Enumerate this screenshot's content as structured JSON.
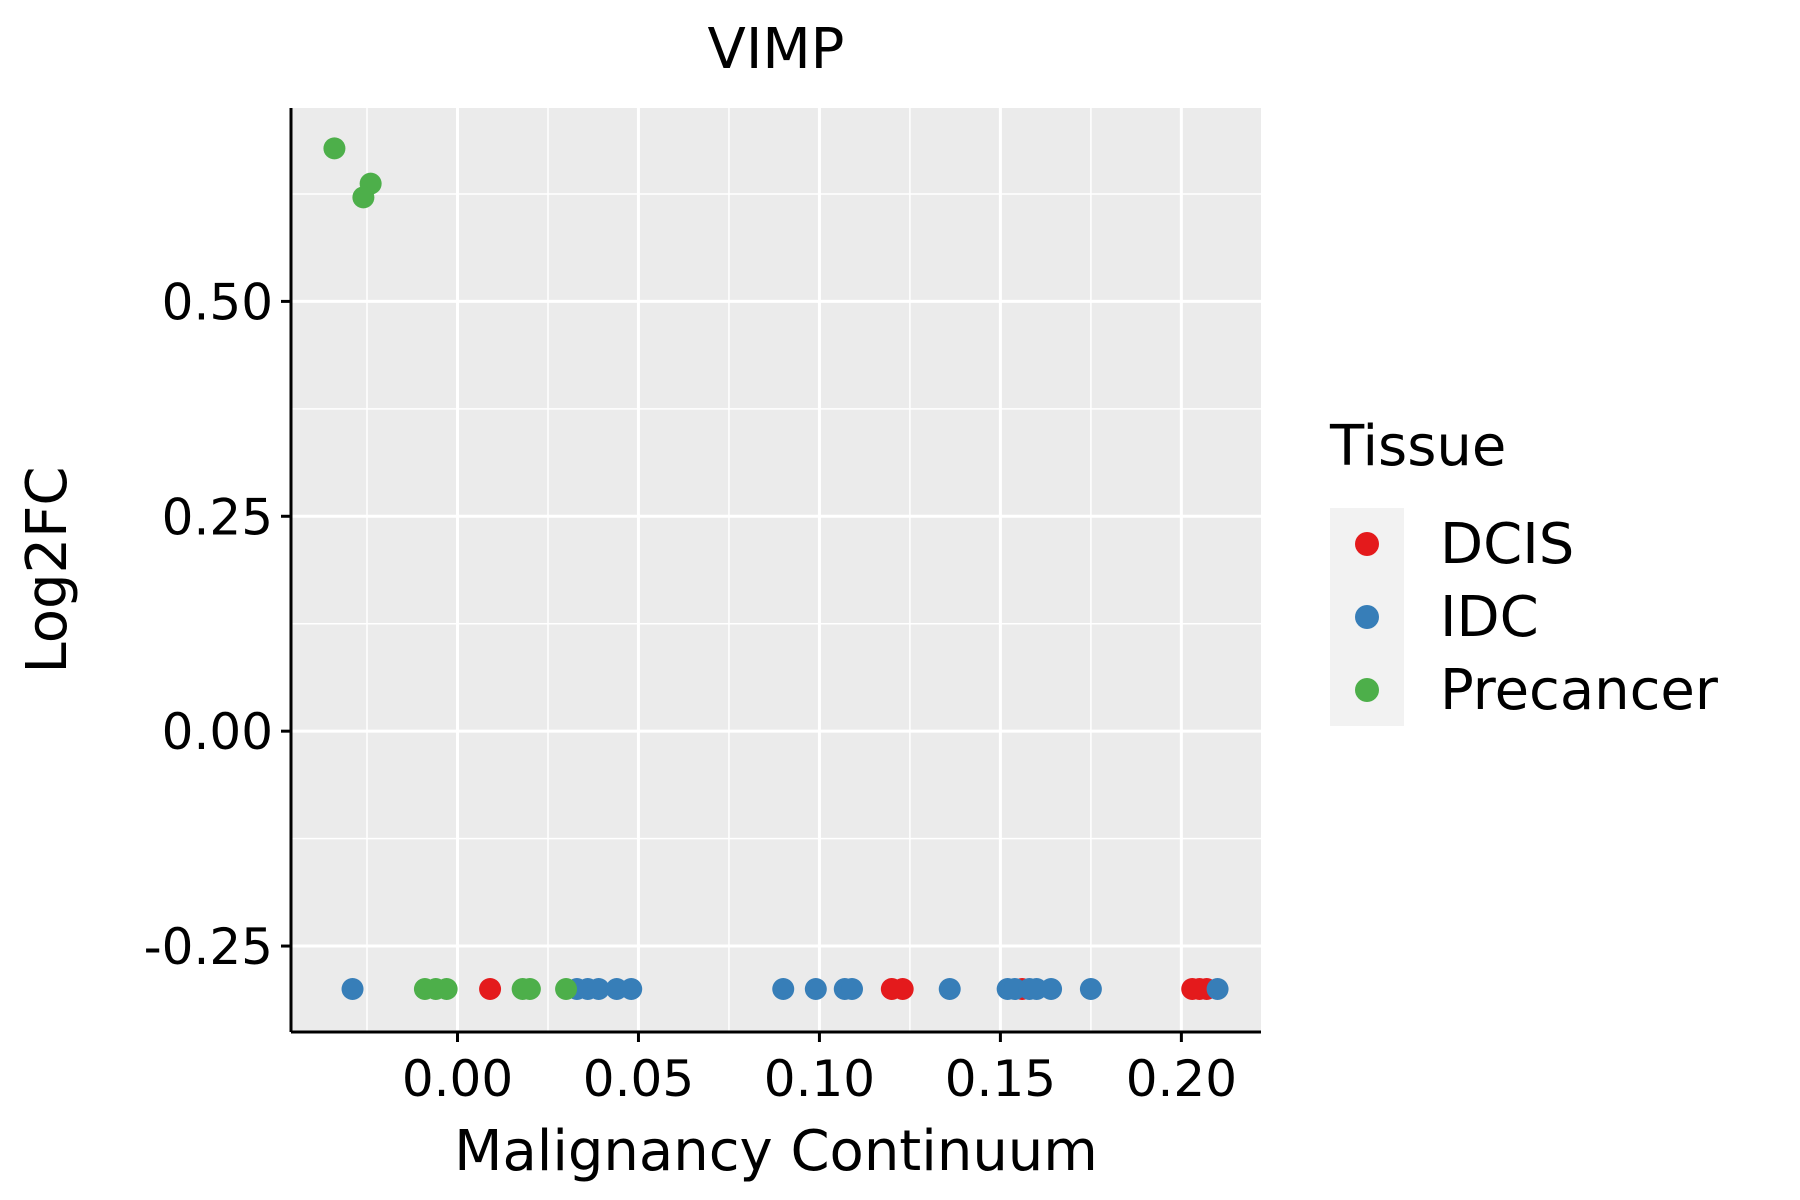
{
  "chart_data": {
    "type": "scatter",
    "title": "VIMP",
    "xlabel": "Malignancy Continuum",
    "ylabel": "Log2FC",
    "xlim": [
      -0.046,
      0.222
    ],
    "ylim": [
      -0.35,
      0.725
    ],
    "x_ticks": [
      0.0,
      0.05,
      0.1,
      0.15,
      0.2
    ],
    "x_tick_labels": [
      "0.00",
      "0.05",
      "0.10",
      "0.15",
      "0.20"
    ],
    "y_ticks": [
      -0.25,
      0.0,
      0.25,
      0.5
    ],
    "y_tick_labels": [
      "-0.25",
      "0.00",
      "0.25",
      "0.50"
    ],
    "grid": true,
    "legend": {
      "title": "Tissue",
      "position": "right",
      "entries": [
        {
          "label": "DCIS",
          "color": "#E41A1C"
        },
        {
          "label": "IDC",
          "color": "#377EB8"
        },
        {
          "label": "Precancer",
          "color": "#4DAF4A"
        }
      ]
    },
    "series": [
      {
        "name": "DCIS",
        "color": "#E41A1C",
        "points": [
          [
            0.009,
            -0.3
          ],
          [
            0.12,
            -0.3
          ],
          [
            0.123,
            -0.3
          ],
          [
            0.156,
            -0.3
          ],
          [
            0.203,
            -0.3
          ],
          [
            0.205,
            -0.3
          ],
          [
            0.207,
            -0.3
          ]
        ]
      },
      {
        "name": "IDC",
        "color": "#377EB8",
        "points": [
          [
            -0.029,
            -0.3
          ],
          [
            0.033,
            -0.3
          ],
          [
            0.036,
            -0.3
          ],
          [
            0.039,
            -0.3
          ],
          [
            0.044,
            -0.3
          ],
          [
            0.048,
            -0.3
          ],
          [
            0.09,
            -0.3
          ],
          [
            0.099,
            -0.3
          ],
          [
            0.107,
            -0.3
          ],
          [
            0.109,
            -0.3
          ],
          [
            0.136,
            -0.3
          ],
          [
            0.152,
            -0.3
          ],
          [
            0.154,
            -0.3
          ],
          [
            0.158,
            -0.3
          ],
          [
            0.16,
            -0.3
          ],
          [
            0.164,
            -0.3
          ],
          [
            0.175,
            -0.3
          ],
          [
            0.21,
            -0.3
          ]
        ]
      },
      {
        "name": "Precancer",
        "color": "#4DAF4A",
        "points": [
          [
            -0.034,
            0.678
          ],
          [
            -0.024,
            0.637
          ],
          [
            -0.026,
            0.621
          ],
          [
            -0.009,
            -0.3
          ],
          [
            -0.006,
            -0.3
          ],
          [
            -0.003,
            -0.3
          ],
          [
            0.018,
            -0.3
          ],
          [
            0.02,
            -0.3
          ],
          [
            0.03,
            -0.3
          ]
        ]
      }
    ]
  }
}
